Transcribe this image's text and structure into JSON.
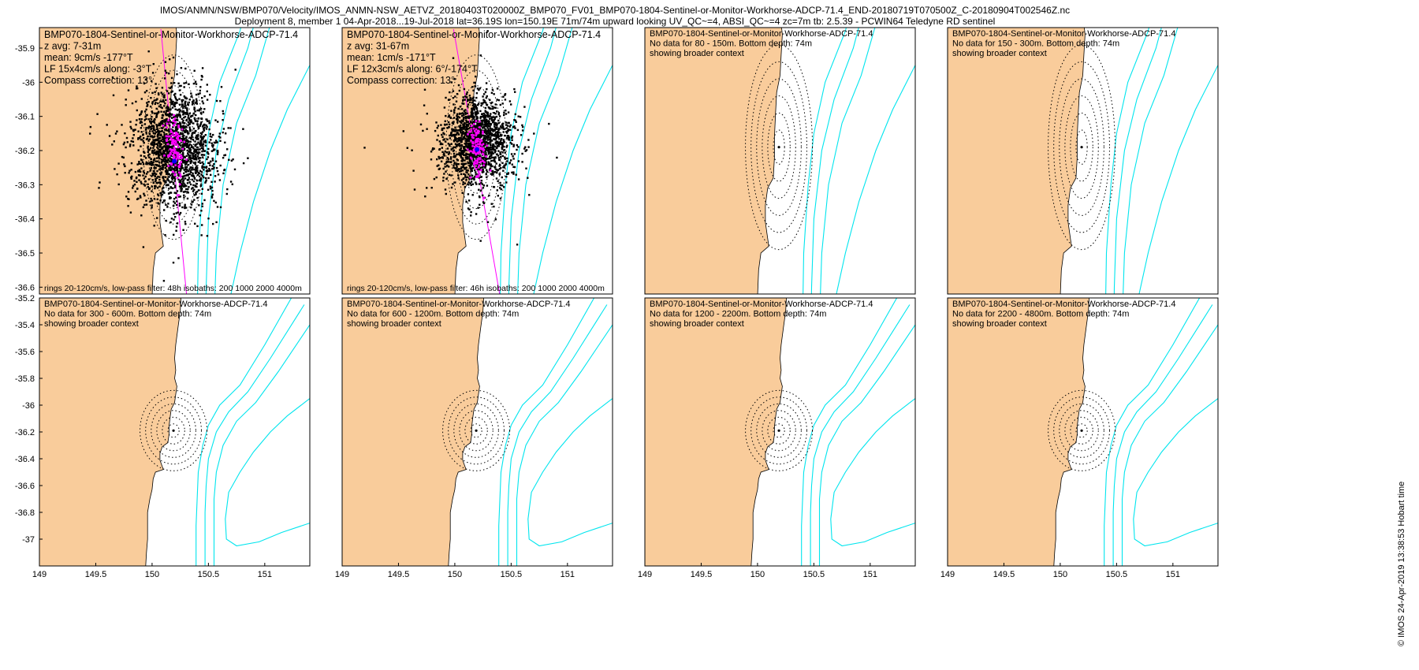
{
  "header": {
    "line1": "IMOS/ANMN/NSW/BMP070/Velocity/IMOS_ANMN-NSW_AETVZ_20180403T020000Z_BMP070_FV01_BMP070-1804-Sentinel-or-Monitor-Workhorse-ADCP-71.4_END-20180719T070500Z_C-20180904T002546Z.nc",
    "line2": "Deployment 8, member 1 04-Apr-2018...19-Jul-2018 lat=36.19S lon=150.19E 71m/74m upward looking UV_QC~=4, ABSI_QC~=4 zc=7m tb: 2.5.39 - PCWIN64 Teledyne RD sentinel"
  },
  "credit": "© IMOS 24-Apr-2019 13:38:53 Hobart time",
  "colors": {
    "land": "#F9CC9B",
    "isobath": "#00E5EE",
    "scatter": "#000000",
    "lowpass": "#FF00FF",
    "mean": "#0000FF",
    "ring": "#000000"
  },
  "chart_data": [
    {
      "type": "scatter",
      "title_lines": [
        "BMP070-1804-Sentinel-or-Monitor-Workhorse-ADCP-71.4",
        "z avg: 7-31m",
        "mean: 9cm/s -177°T",
        "LF 15x4cm/s along: -3°T",
        "Compass correction: 13°"
      ],
      "footer": "rings 20-120cm/s, low-pass filter: 48h isobaths: 200 1000 2000 4000m",
      "xlim": [
        149,
        151.4
      ],
      "ylim": [
        -36.62,
        -35.84
      ],
      "yticks": [
        -35.9,
        -36,
        -36.1,
        -36.2,
        -36.3,
        -36.4,
        -36.5,
        -36.6
      ],
      "xticks": [],
      "has_data": true,
      "mooring": [
        150.19,
        -36.19
      ],
      "mean_vector": {
        "speed_cm_s": 9,
        "direction_deg_T": -177
      },
      "lowpass_ellipse": {
        "major_cm_s": 15,
        "minor_cm_s": 4,
        "along_deg_T": -3
      },
      "rings_cm_s": [
        20,
        40,
        60,
        80,
        100,
        120
      ],
      "isobaths_m": [
        200,
        1000,
        2000,
        4000
      ]
    },
    {
      "type": "scatter",
      "title_lines": [
        "BMP070-1804-Sentinel-or-Monitor-Workhorse-ADCP-71.4",
        "z avg: 31-67m",
        "mean: 1cm/s -171°T",
        "LF 12x3cm/s along: 6°/-174°T",
        "Compass correction: 13°"
      ],
      "footer": "rings 20-120cm/s, low-pass filter: 46h isobaths: 200 1000 2000 4000m",
      "xlim": [
        149,
        151.4
      ],
      "ylim": [
        -36.62,
        -35.84
      ],
      "yticks": [],
      "xticks": [],
      "has_data": true,
      "mooring": [
        150.19,
        -36.19
      ],
      "mean_vector": {
        "speed_cm_s": 1,
        "direction_deg_T": -171
      },
      "lowpass_ellipse": {
        "major_cm_s": 12,
        "minor_cm_s": 3,
        "along_deg_T": 6
      },
      "rings_cm_s": [
        20,
        40,
        60,
        80,
        100,
        120
      ],
      "isobaths_m": [
        200,
        1000,
        2000,
        4000
      ]
    },
    {
      "type": "map",
      "title_lines": [
        "BMP070-1804-Sentinel-or-Monitor-Workhorse-ADCP-71.4",
        "No data for 80 - 150m. Bottom depth: 74m",
        "showing broader context"
      ],
      "footer": "",
      "xlim": [
        149,
        151.4
      ],
      "ylim": [
        -36.62,
        -35.84
      ],
      "yticks": [],
      "xticks": [],
      "has_data": false,
      "mooring": [
        150.19,
        -36.19
      ]
    },
    {
      "type": "map",
      "title_lines": [
        "BMP070-1804-Sentinel-or-Monitor-Workhorse-ADCP-71.4",
        "No data for 150 - 300m. Bottom depth: 74m",
        "showing broader context"
      ],
      "footer": "",
      "xlim": [
        149,
        151.4
      ],
      "ylim": [
        -36.62,
        -35.84
      ],
      "yticks": [],
      "xticks": [],
      "has_data": false,
      "mooring": [
        150.19,
        -36.19
      ]
    },
    {
      "type": "map",
      "title_lines": [
        "BMP070-1804-Sentinel-or-Monitor-Workhorse-ADCP-71.4",
        "No data for 300 - 600m. Bottom depth: 74m",
        "showing broader context"
      ],
      "footer": "",
      "xlim": [
        149,
        151.4
      ],
      "ylim": [
        -37.2,
        -35.2
      ],
      "yticks": [
        -35.2,
        -35.4,
        -35.6,
        -35.8,
        -36,
        -36.2,
        -36.4,
        -36.6,
        -36.8,
        -37
      ],
      "xticks": [
        149,
        149.5,
        150,
        150.5,
        151
      ],
      "has_data": false,
      "mooring": [
        150.19,
        -36.19
      ]
    },
    {
      "type": "map",
      "title_lines": [
        "BMP070-1804-Sentinel-or-Monitor-Workhorse-ADCP-71.4",
        "No data for 600 - 1200m. Bottom depth: 74m",
        "showing broader context"
      ],
      "footer": "",
      "xlim": [
        149,
        151.4
      ],
      "ylim": [
        -37.2,
        -35.2
      ],
      "yticks": [],
      "xticks": [
        149,
        149.5,
        150,
        150.5,
        151
      ],
      "has_data": false,
      "mooring": [
        150.19,
        -36.19
      ]
    },
    {
      "type": "map",
      "title_lines": [
        "BMP070-1804-Sentinel-or-Monitor-Workhorse-ADCP-71.4",
        "No data for 1200 - 2200m. Bottom depth: 74m",
        "showing broader context"
      ],
      "footer": "",
      "xlim": [
        149,
        151.4
      ],
      "ylim": [
        -37.2,
        -35.2
      ],
      "yticks": [],
      "xticks": [
        149,
        149.5,
        150,
        150.5,
        151
      ],
      "has_data": false,
      "mooring": [
        150.19,
        -36.19
      ]
    },
    {
      "type": "map",
      "title_lines": [
        "BMP070-1804-Sentinel-or-Monitor-Workhorse-ADCP-71.4",
        "No data for 2200 - 4800m. Bottom depth: 74m",
        "showing broader context"
      ],
      "footer": "",
      "xlim": [
        149,
        151.4
      ],
      "ylim": [
        -37.2,
        -35.2
      ],
      "yticks": [],
      "xticks": [
        149,
        149.5,
        150,
        150.5,
        151
      ],
      "has_data": false,
      "mooring": [
        150.19,
        -36.19
      ]
    }
  ]
}
